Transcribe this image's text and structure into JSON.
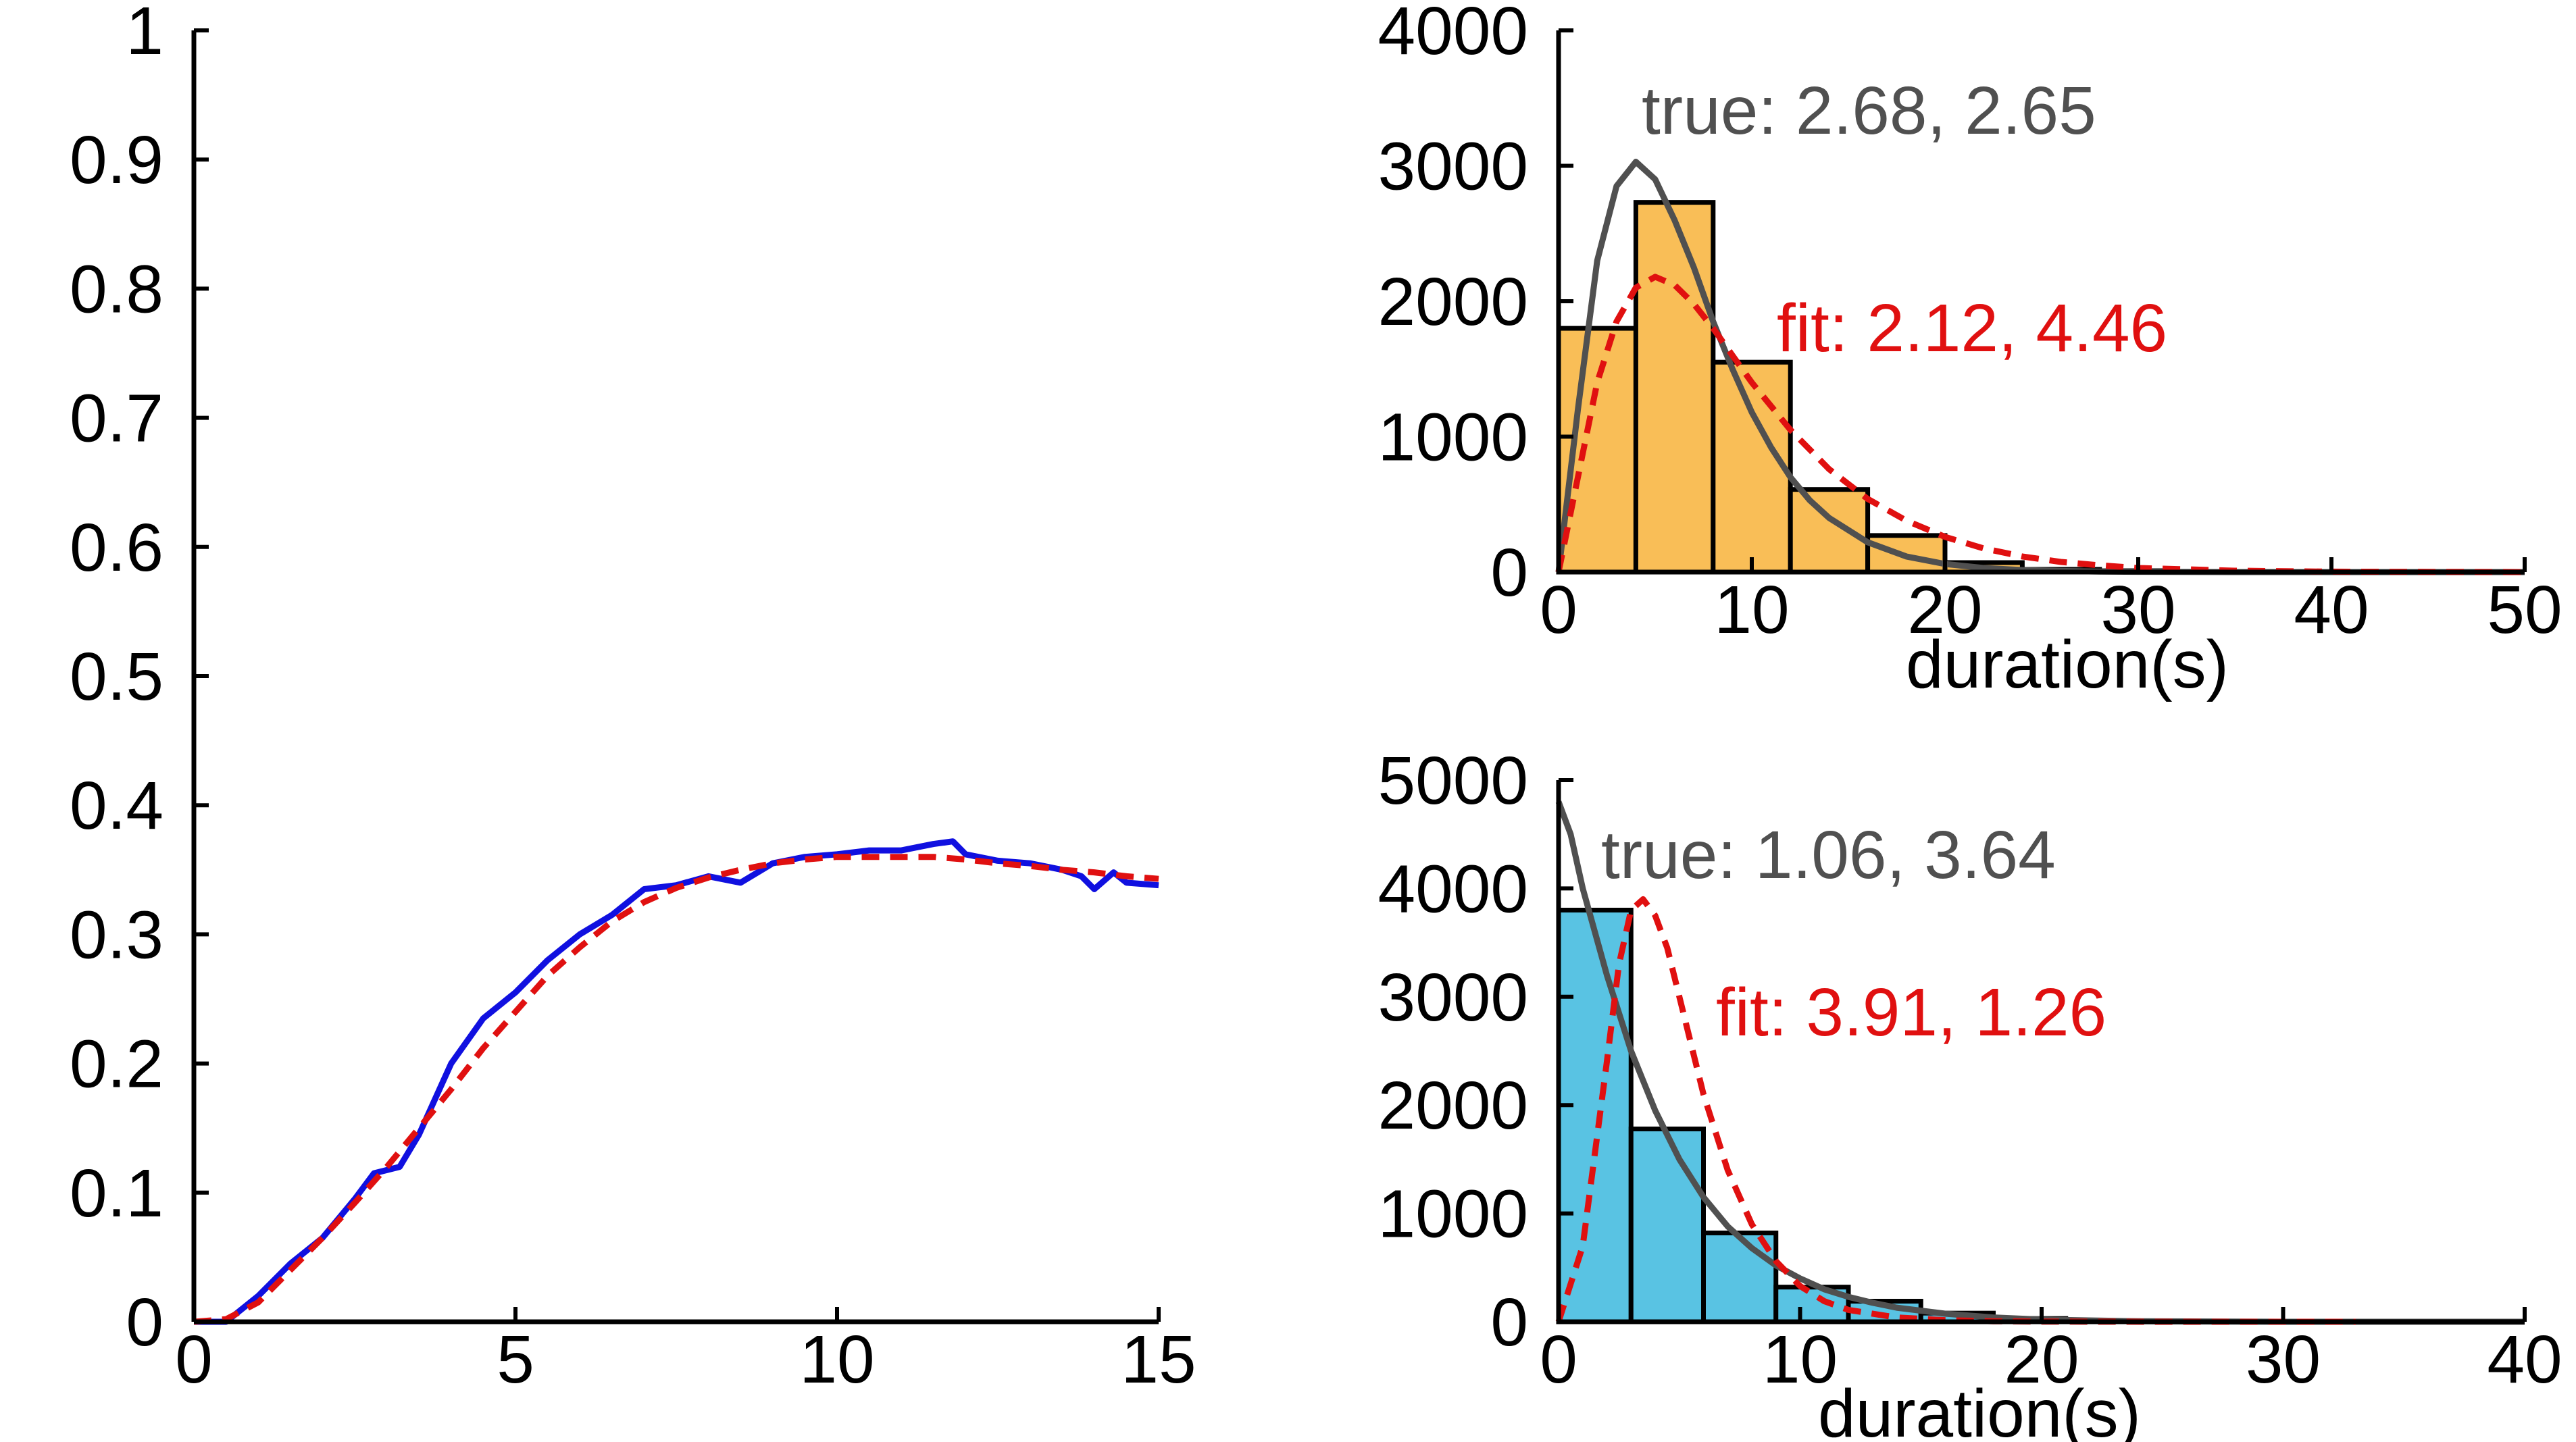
{
  "chart_data": [
    {
      "id": "left",
      "type": "line",
      "title": "",
      "xlabel": "",
      "ylabel": "",
      "xlim": [
        0,
        15
      ],
      "ylim": [
        0,
        1
      ],
      "xticks": [
        "0",
        "5",
        "10",
        "15"
      ],
      "yticks": [
        "0",
        "0.1",
        "0.2",
        "0.3",
        "0.4",
        "0.5",
        "0.6",
        "0.7",
        "0.8",
        "0.9",
        "1"
      ],
      "grid": false,
      "series": [
        {
          "style": "solid",
          "color": "#1010e0",
          "x": [
            0,
            0.5,
            1.0,
            1.5,
            2.0,
            2.5,
            2.8,
            3.2,
            3.5,
            4.0,
            4.5,
            5.0,
            5.5,
            6.0,
            6.5,
            7.0,
            7.5,
            8.0,
            8.5,
            9.0,
            9.5,
            10.0,
            10.5,
            11.0,
            11.5,
            11.8,
            12.0,
            12.5,
            13.0,
            13.5,
            13.8,
            14.0,
            14.3,
            14.5,
            15.0
          ],
          "y": [
            0,
            0.0,
            0.02,
            0.045,
            0.065,
            0.095,
            0.115,
            0.12,
            0.145,
            0.2,
            0.235,
            0.255,
            0.28,
            0.3,
            0.315,
            0.335,
            0.338,
            0.345,
            0.34,
            0.355,
            0.36,
            0.362,
            0.365,
            0.365,
            0.37,
            0.372,
            0.362,
            0.357,
            0.355,
            0.35,
            0.345,
            0.335,
            0.348,
            0.34,
            0.338
          ]
        },
        {
          "style": "dashed",
          "color": "#e01010",
          "x": [
            0,
            0.5,
            1.0,
            1.5,
            2.0,
            2.5,
            3.0,
            3.5,
            4.0,
            4.5,
            5.0,
            5.5,
            6.0,
            6.5,
            7.0,
            7.5,
            8.0,
            8.5,
            9.0,
            9.5,
            10.0,
            10.5,
            11.0,
            11.5,
            12.0,
            12.5,
            13.0,
            13.5,
            14.0,
            14.5,
            15.0
          ],
          "y": [
            0,
            0.002,
            0.015,
            0.04,
            0.065,
            0.092,
            0.12,
            0.15,
            0.18,
            0.212,
            0.24,
            0.268,
            0.29,
            0.31,
            0.325,
            0.336,
            0.344,
            0.35,
            0.355,
            0.358,
            0.36,
            0.36,
            0.36,
            0.36,
            0.358,
            0.355,
            0.353,
            0.35,
            0.348,
            0.345,
            0.343
          ]
        }
      ]
    },
    {
      "id": "top-right",
      "type": "bar",
      "title": "",
      "xlabel": "duration(s)",
      "ylabel": "",
      "xlim": [
        0,
        50
      ],
      "ylim": [
        0,
        4000
      ],
      "xticks": [
        "0",
        "10",
        "20",
        "30",
        "40",
        "50"
      ],
      "yticks": [
        "0",
        "1000",
        "2000",
        "3000",
        "4000"
      ],
      "bar_color": "#f9be57",
      "bins": [
        [
          0,
          4
        ],
        [
          4,
          8
        ],
        [
          8,
          12
        ],
        [
          12,
          16
        ],
        [
          16,
          20
        ],
        [
          20,
          24
        ],
        [
          24,
          28
        ],
        [
          28,
          32
        ]
      ],
      "values": [
        1800,
        2730,
        1550,
        610,
        270,
        70,
        20,
        10
      ],
      "curves": [
        {
          "style": "solid",
          "color": "#505050",
          "x": [
            0,
            1,
            2,
            3,
            4,
            5,
            6,
            7,
            8,
            9,
            10,
            11,
            12,
            13,
            14,
            16,
            18,
            20,
            22,
            24,
            26,
            28,
            30,
            35,
            40,
            50
          ],
          "y": [
            0,
            1200,
            2300,
            2850,
            3030,
            2900,
            2600,
            2250,
            1850,
            1500,
            1180,
            920,
            700,
            530,
            400,
            220,
            115,
            60,
            30,
            15,
            8,
            4,
            2,
            0,
            0,
            0
          ]
        },
        {
          "style": "dashed",
          "color": "#e01010",
          "x": [
            0,
            1,
            2,
            3,
            4,
            5,
            6,
            7,
            8,
            9,
            10,
            12,
            14,
            16,
            18,
            20,
            22,
            24,
            26,
            28,
            30,
            35,
            40,
            50
          ],
          "y": [
            0,
            700,
            1400,
            1850,
            2100,
            2180,
            2120,
            1980,
            1800,
            1600,
            1400,
            1050,
            760,
            540,
            380,
            260,
            175,
            115,
            75,
            50,
            30,
            10,
            3,
            0
          ]
        }
      ],
      "annotations": [
        {
          "text": "true: 2.68, 2.65",
          "color": "#505050"
        },
        {
          "text": "fit: 2.12, 4.46",
          "color": "#e01010"
        }
      ]
    },
    {
      "id": "bottom-right",
      "type": "bar",
      "title": "",
      "xlabel": "duration(s)",
      "ylabel": "",
      "xlim": [
        0,
        40
      ],
      "ylim": [
        0,
        5000
      ],
      "xticks": [
        "0",
        "10",
        "20",
        "30",
        "40"
      ],
      "yticks": [
        "0",
        "1000",
        "2000",
        "3000",
        "4000",
        "5000"
      ],
      "bar_color": "#59c3e3",
      "bins": [
        [
          0,
          3
        ],
        [
          3,
          6
        ],
        [
          6,
          9
        ],
        [
          9,
          12
        ],
        [
          12,
          15
        ],
        [
          15,
          18
        ],
        [
          18,
          21
        ],
        [
          21,
          24
        ]
      ],
      "values": [
        3800,
        1780,
        820,
        320,
        190,
        80,
        30,
        10
      ],
      "curves": [
        {
          "style": "solid",
          "color": "#505050",
          "x": [
            0,
            0.5,
            1,
            2,
            3,
            4,
            5,
            6,
            7,
            8,
            9,
            10,
            11,
            12,
            13,
            14,
            16,
            18,
            20,
            24,
            30,
            40
          ],
          "y": [
            4800,
            4500,
            4000,
            3200,
            2500,
            1950,
            1500,
            1150,
            880,
            680,
            520,
            400,
            300,
            230,
            175,
            130,
            75,
            40,
            20,
            5,
            0,
            0
          ]
        },
        {
          "style": "dashed",
          "color": "#e01010",
          "x": [
            0,
            1,
            2,
            2.5,
            3,
            3.5,
            4,
            4.5,
            5,
            6,
            7,
            8,
            9,
            10,
            11,
            12,
            14,
            16,
            18,
            20,
            25,
            33
          ],
          "y": [
            0,
            700,
            2400,
            3300,
            3800,
            3900,
            3750,
            3450,
            3000,
            2100,
            1400,
            900,
            560,
            330,
            190,
            110,
            40,
            15,
            5,
            2,
            0,
            0
          ]
        }
      ],
      "annotations": [
        {
          "text": "true: 1.06, 3.64",
          "color": "#505050"
        },
        {
          "text": "fit: 3.91, 1.26",
          "color": "#e01010"
        }
      ]
    }
  ]
}
